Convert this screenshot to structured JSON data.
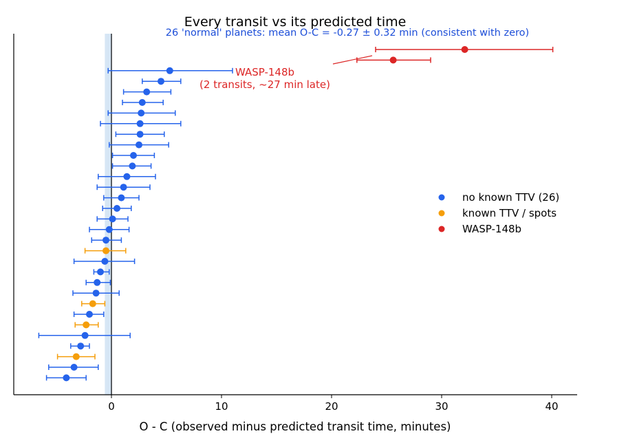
{
  "chart_data": {
    "type": "scatter",
    "title": "Every transit vs its predicted time",
    "subtitle": "26 'normal' planets: mean O-C = -0.27 ± 0.32 min (consistent with zero)",
    "xlabel": "O - C  (observed minus predicted transit time, minutes)",
    "ylabel": "",
    "xlim": [
      -8.9,
      42.3
    ],
    "x_ticks": [
      0,
      10,
      20,
      30,
      40
    ],
    "grid": false,
    "legend_position": "center-right",
    "colors": {
      "normal": "#2563eb",
      "known_ttv": "#f59e0b",
      "wasp": "#dc2626",
      "subtitle": "#1d4ed8",
      "band": "#cfe2f3"
    },
    "shaded_band": {
      "x_from": -0.6,
      "x_to": 0.05
    },
    "zero_line": 0,
    "annotation": {
      "line1": "WASP-148b",
      "line2": "(2 transits, ~27 min late)"
    },
    "series": [
      {
        "name": "no known TTV (26)",
        "color": "#2563eb",
        "points": [
          {
            "x": 5.3,
            "lo": -0.3,
            "hi": 11.0
          },
          {
            "x": 4.5,
            "lo": 2.8,
            "hi": 6.3
          },
          {
            "x": 3.2,
            "lo": 1.1,
            "hi": 5.4
          },
          {
            "x": 2.8,
            "lo": 1.0,
            "hi": 4.7
          },
          {
            "x": 2.7,
            "lo": -0.3,
            "hi": 5.8
          },
          {
            "x": 2.6,
            "lo": -1.0,
            "hi": 6.3
          },
          {
            "x": 2.6,
            "lo": 0.4,
            "hi": 4.8
          },
          {
            "x": 2.5,
            "lo": -0.2,
            "hi": 5.2
          },
          {
            "x": 2.0,
            "lo": 0.1,
            "hi": 3.9
          },
          {
            "x": 1.9,
            "lo": 0.1,
            "hi": 3.6
          },
          {
            "x": 1.4,
            "lo": -1.2,
            "hi": 4.0
          },
          {
            "x": 1.1,
            "lo": -1.3,
            "hi": 3.5
          },
          {
            "x": 0.9,
            "lo": -0.7,
            "hi": 2.5
          },
          {
            "x": 0.5,
            "lo": -0.8,
            "hi": 1.8
          },
          {
            "x": 0.1,
            "lo": -1.3,
            "hi": 1.5
          },
          {
            "x": -0.2,
            "lo": -2.0,
            "hi": 1.6
          },
          {
            "x": -0.5,
            "lo": -1.8,
            "hi": 0.9
          },
          {
            "x": -0.6,
            "lo": -3.4,
            "hi": 2.1
          },
          {
            "x": -1.0,
            "lo": -1.6,
            "hi": -0.2
          },
          {
            "x": -1.3,
            "lo": -2.3,
            "hi": -0.1
          },
          {
            "x": -1.4,
            "lo": -3.5,
            "hi": 0.7
          },
          {
            "x": -2.0,
            "lo": -3.4,
            "hi": -0.7
          },
          {
            "x": -2.4,
            "lo": -6.6,
            "hi": 1.7
          },
          {
            "x": -2.8,
            "lo": -3.7,
            "hi": -2.0
          },
          {
            "x": -3.4,
            "lo": -5.7,
            "hi": -1.2
          },
          {
            "x": -4.1,
            "lo": -5.9,
            "hi": -2.3
          }
        ]
      },
      {
        "name": "known TTV / spots",
        "color": "#f59e0b",
        "points": [
          {
            "x": -0.5,
            "lo": -2.4,
            "hi": 1.3
          },
          {
            "x": -1.7,
            "lo": -2.7,
            "hi": -0.6
          },
          {
            "x": -2.3,
            "lo": -3.3,
            "hi": -1.2
          },
          {
            "x": -3.2,
            "lo": -4.9,
            "hi": -1.5
          }
        ]
      },
      {
        "name": "WASP-148b",
        "color": "#dc2626",
        "points": [
          {
            "x": 32.1,
            "lo": 24.0,
            "hi": 40.1
          },
          {
            "x": 25.6,
            "lo": 22.3,
            "hi": 29.0
          }
        ]
      }
    ],
    "row_order": [
      [
        "WASP-148b",
        0
      ],
      [
        "WASP-148b",
        1
      ],
      [
        "no known TTV (26)",
        0
      ],
      [
        "no known TTV (26)",
        1
      ],
      [
        "no known TTV (26)",
        2
      ],
      [
        "no known TTV (26)",
        3
      ],
      [
        "no known TTV (26)",
        4
      ],
      [
        "no known TTV (26)",
        5
      ],
      [
        "no known TTV (26)",
        6
      ],
      [
        "no known TTV (26)",
        7
      ],
      [
        "no known TTV (26)",
        8
      ],
      [
        "no known TTV (26)",
        9
      ],
      [
        "no known TTV (26)",
        10
      ],
      [
        "no known TTV (26)",
        11
      ],
      [
        "no known TTV (26)",
        12
      ],
      [
        "no known TTV (26)",
        13
      ],
      [
        "no known TTV (26)",
        14
      ],
      [
        "no known TTV (26)",
        15
      ],
      [
        "no known TTV (26)",
        16
      ],
      [
        "known TTV / spots",
        0
      ],
      [
        "no known TTV (26)",
        17
      ],
      [
        "no known TTV (26)",
        18
      ],
      [
        "no known TTV (26)",
        19
      ],
      [
        "no known TTV (26)",
        20
      ],
      [
        "known TTV / spots",
        1
      ],
      [
        "no known TTV (26)",
        21
      ],
      [
        "known TTV / spots",
        2
      ],
      [
        "no known TTV (26)",
        22
      ],
      [
        "no known TTV (26)",
        23
      ],
      [
        "known TTV / spots",
        3
      ],
      [
        "no known TTV (26)",
        24
      ],
      [
        "no known TTV (26)",
        25
      ]
    ]
  }
}
